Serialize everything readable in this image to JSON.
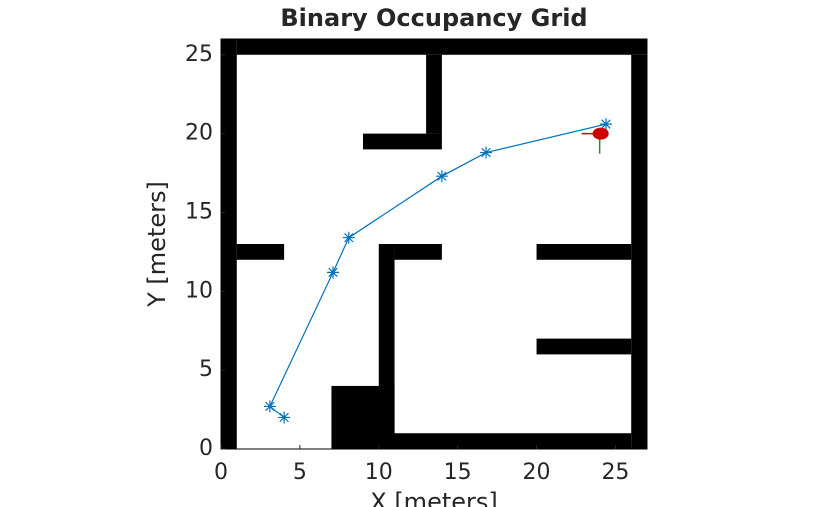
{
  "chart_data": {
    "type": "occupancy",
    "title": "Binary Occupancy Grid",
    "x_label": "X [meters]",
    "y_label": "Y [meters]",
    "xlim": [
      0,
      27
    ],
    "ylim": [
      0,
      26
    ],
    "xticks": [
      0,
      5,
      10,
      15,
      20,
      25
    ],
    "yticks": [
      0,
      5,
      10,
      15,
      20,
      25
    ],
    "obstacle_color": "#000000",
    "obstacles": [
      [
        0,
        1,
        0,
        26
      ],
      [
        1,
        27,
        25,
        26
      ],
      [
        26,
        27,
        0,
        25
      ],
      [
        10,
        26,
        0,
        1
      ],
      [
        7,
        11,
        0,
        4
      ],
      [
        10,
        11,
        1,
        13
      ],
      [
        11,
        14,
        12,
        13
      ],
      [
        13,
        14,
        20,
        25
      ],
      [
        9,
        14,
        19,
        20
      ],
      [
        1,
        4,
        12,
        13
      ],
      [
        20,
        26,
        12,
        13
      ],
      [
        20,
        26,
        6,
        7
      ]
    ],
    "series": [
      {
        "color": "#0072bd",
        "x": [
          4,
          3.1,
          7.1,
          8.1,
          14,
          16.8,
          24.4
        ],
        "values": [
          2,
          2.7,
          11.2,
          13.4,
          17.3,
          18.8,
          20.6
        ]
      }
    ],
    "robot": {
      "x": 24,
      "y": 20,
      "color": "#cc0000"
    }
  }
}
